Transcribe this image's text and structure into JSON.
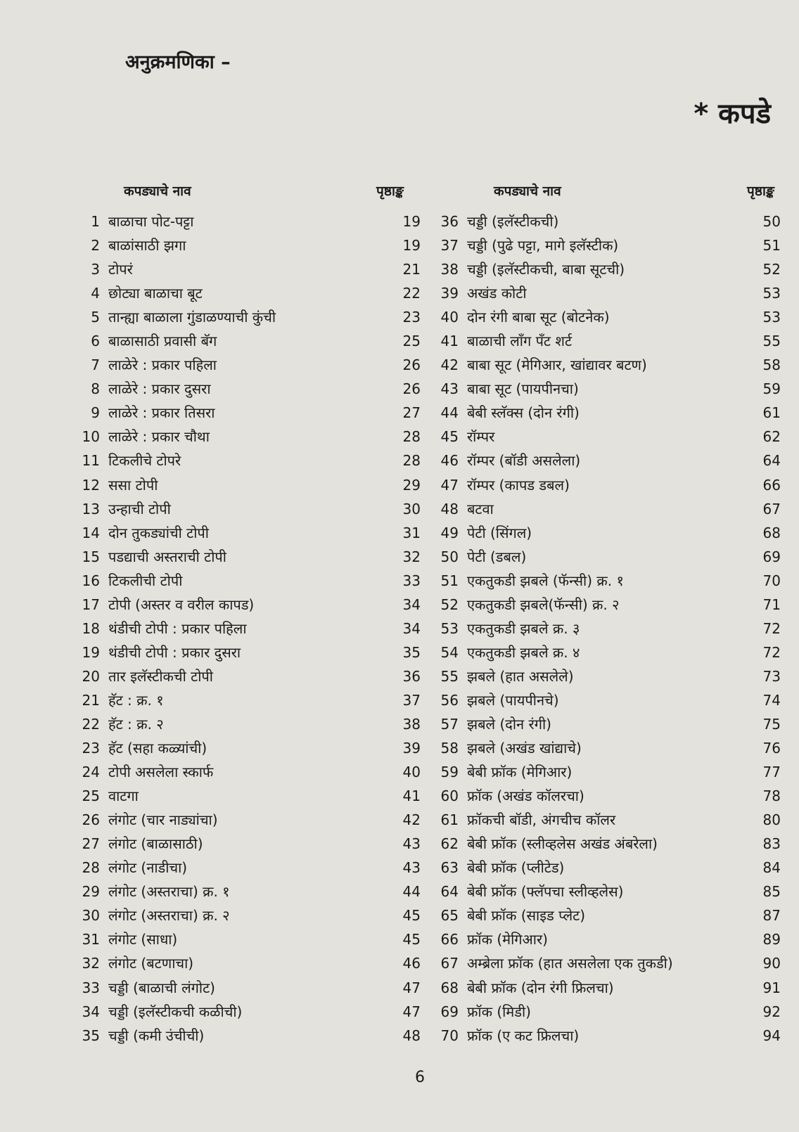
{
  "title": "अनुक्रमणिका –",
  "section": "* कपडे",
  "header": {
    "name": "कपड्याचे नाव",
    "page": "पृष्ठाङ्क"
  },
  "left": [
    {
      "n": "1",
      "t": "बाळाचा पोट-पट्टा",
      "p": "19"
    },
    {
      "n": "2",
      "t": "बाळांसाठी झगा",
      "p": "19"
    },
    {
      "n": "3",
      "t": "टोपरं",
      "p": "21"
    },
    {
      "n": "4",
      "t": "छोट्या बाळाचा बूट",
      "p": "22"
    },
    {
      "n": "5",
      "t": "तान्ह्या बाळाला गुंडाळण्याची कुंची",
      "p": "23"
    },
    {
      "n": "6",
      "t": "बाळासाठी प्रवासी बॅग",
      "p": "25"
    },
    {
      "n": "7",
      "t": "लाळेरे : प्रकार पहिला",
      "p": "26"
    },
    {
      "n": "8",
      "t": "लाळेरे : प्रकार दुसरा",
      "p": "26"
    },
    {
      "n": "9",
      "t": "लाळेरे : प्रकार तिसरा",
      "p": "27"
    },
    {
      "n": "10",
      "t": "लाळेरे : प्रकार चौथा",
      "p": "28"
    },
    {
      "n": "11",
      "t": "टिकलीचे टोपरे",
      "p": "28"
    },
    {
      "n": "12",
      "t": "ससा टोपी",
      "p": "29"
    },
    {
      "n": "13",
      "t": "उन्हाची टोपी",
      "p": "30"
    },
    {
      "n": "14",
      "t": "दोन तुकड्यांची टोपी",
      "p": "31"
    },
    {
      "n": "15",
      "t": "पडद्याची अस्तराची टोपी",
      "p": "32"
    },
    {
      "n": "16",
      "t": "टिकलीची टोपी",
      "p": "33"
    },
    {
      "n": "17",
      "t": "टोपी (अस्तर व वरील कापड)",
      "p": "34"
    },
    {
      "n": "18",
      "t": "थंडीची टोपी : प्रकार पहिला",
      "p": "34"
    },
    {
      "n": "19",
      "t": "थंडीची टोपी : प्रकार दुसरा",
      "p": "35"
    },
    {
      "n": "20",
      "t": "तार इलॅस्टीकची टोपी",
      "p": "36"
    },
    {
      "n": "21",
      "t": "हॅट : क्र. १",
      "p": "37"
    },
    {
      "n": "22",
      "t": "हॅट : क्र. २",
      "p": "38"
    },
    {
      "n": "23",
      "t": "हॅट (सहा कळ्यांची)",
      "p": "39"
    },
    {
      "n": "24",
      "t": "टोपी असलेला स्कार्फ",
      "p": "40"
    },
    {
      "n": "25",
      "t": "वाटगा",
      "p": "41"
    },
    {
      "n": "26",
      "t": "लंगोट (चार नाड्यांचा)",
      "p": "42"
    },
    {
      "n": "27",
      "t": "लंगोट (बाळासाठी)",
      "p": "43"
    },
    {
      "n": "28",
      "t": "लंगोट (नाडीचा)",
      "p": "43"
    },
    {
      "n": "29",
      "t": "लंगोट (अस्तराचा) क्र. १",
      "p": "44"
    },
    {
      "n": "30",
      "t": "लंगोट (अस्तराचा) क्र. २",
      "p": "45"
    },
    {
      "n": "31",
      "t": "लंगोट (साधा)",
      "p": "45"
    },
    {
      "n": "32",
      "t": "लंगोट (बटणाचा)",
      "p": "46"
    },
    {
      "n": "33",
      "t": "चड्डी (बाळाची लंगोट)",
      "p": "47"
    },
    {
      "n": "34",
      "t": "चड्डी (इलॅस्टीकची कळीची)",
      "p": "47"
    },
    {
      "n": "35",
      "t": "चड्डी (कमी उंचीची)",
      "p": "48"
    }
  ],
  "right": [
    {
      "n": "36",
      "t": "चड्डी (इलॅस्टीकची)",
      "p": "50"
    },
    {
      "n": "37",
      "t": "चड्डी (पुढे पट्टा, मागे इलॅस्टीक)",
      "p": "51"
    },
    {
      "n": "38",
      "t": "चड्डी (इलॅस्टीकची, बाबा सूटची)",
      "p": "52"
    },
    {
      "n": "39",
      "t": "अखंड कोटी",
      "p": "53"
    },
    {
      "n": "40",
      "t": "दोन रंगी बाबा सूट (बोटनेक)",
      "p": "53"
    },
    {
      "n": "41",
      "t": "बाळाची लॉंग पॅंट शर्ट",
      "p": "55"
    },
    {
      "n": "42",
      "t": "बाबा सूट (मेगिआर, खांद्यावर बटण)",
      "p": "58"
    },
    {
      "n": "43",
      "t": "बाबा सूट (पायपीनचा)",
      "p": "59"
    },
    {
      "n": "44",
      "t": "बेबी स्लॅक्स (दोन रंगी)",
      "p": "61"
    },
    {
      "n": "45",
      "t": "रॉम्पर",
      "p": "62"
    },
    {
      "n": "46",
      "t": "रॉम्पर (बॉडी असलेला)",
      "p": "64"
    },
    {
      "n": "47",
      "t": "रॉम्पर (कापड डबल)",
      "p": "66"
    },
    {
      "n": "48",
      "t": "बटवा",
      "p": "67"
    },
    {
      "n": "49",
      "t": "पेटी (सिंगल)",
      "p": "68"
    },
    {
      "n": "50",
      "t": "पेटी (डबल)",
      "p": "69"
    },
    {
      "n": "51",
      "t": "एकतुकडी झबले (फॅन्सी) क्र. १",
      "p": "70"
    },
    {
      "n": "52",
      "t": "एकतुकडी झबले(फॅन्सी) क्र. २",
      "p": "71"
    },
    {
      "n": "53",
      "t": "एकतुकडी झबले क्र. ३",
      "p": "72"
    },
    {
      "n": "54",
      "t": "एकतुकडी झबले क्र. ४",
      "p": "72"
    },
    {
      "n": "55",
      "t": "झबले (हात असलेले)",
      "p": "73"
    },
    {
      "n": "56",
      "t": "झबले (पायपीनचे)",
      "p": "74"
    },
    {
      "n": "57",
      "t": "झबले (दोन रंगी)",
      "p": "75"
    },
    {
      "n": "58",
      "t": "झबले (अखंड खांद्याचे)",
      "p": "76"
    },
    {
      "n": "59",
      "t": "बेबी फ्रॉक (मेगिआर)",
      "p": "77"
    },
    {
      "n": "60",
      "t": "फ्रॉक (अखंड कॉलरचा)",
      "p": "78"
    },
    {
      "n": "61",
      "t": "फ्रॉकची बॉडी, अंगचीच कॉलर",
      "p": "80"
    },
    {
      "n": "62",
      "t": "बेबी फ्रॉक (स्लीव्हलेस अखंड अंबरेला)",
      "p": "83"
    },
    {
      "n": "63",
      "t": "बेबी फ्रॉक (प्लीटेड)",
      "p": "84"
    },
    {
      "n": "64",
      "t": "बेबी फ्रॉक (फ्लॅपचा स्लीव्हलेस)",
      "p": "85"
    },
    {
      "n": "65",
      "t": "बेबी फ्रॉक (साइड प्लेट)",
      "p": "87"
    },
    {
      "n": "66",
      "t": "फ्रॉक (मेगिआर)",
      "p": "89"
    },
    {
      "n": "67",
      "t": "अम्ब्रेला फ्रॉक (हात असलेला एक तुकडी)",
      "p": "90"
    },
    {
      "n": "68",
      "t": "बेबी फ्रॉक (दोन रंगी फ्रिलचा)",
      "p": "91"
    },
    {
      "n": "69",
      "t": "फ्रॉक (मिडी)",
      "p": "92"
    },
    {
      "n": "70",
      "t": "फ्रॉक (ए कट फ्रिलचा)",
      "p": "94"
    }
  ],
  "page_number": "6"
}
